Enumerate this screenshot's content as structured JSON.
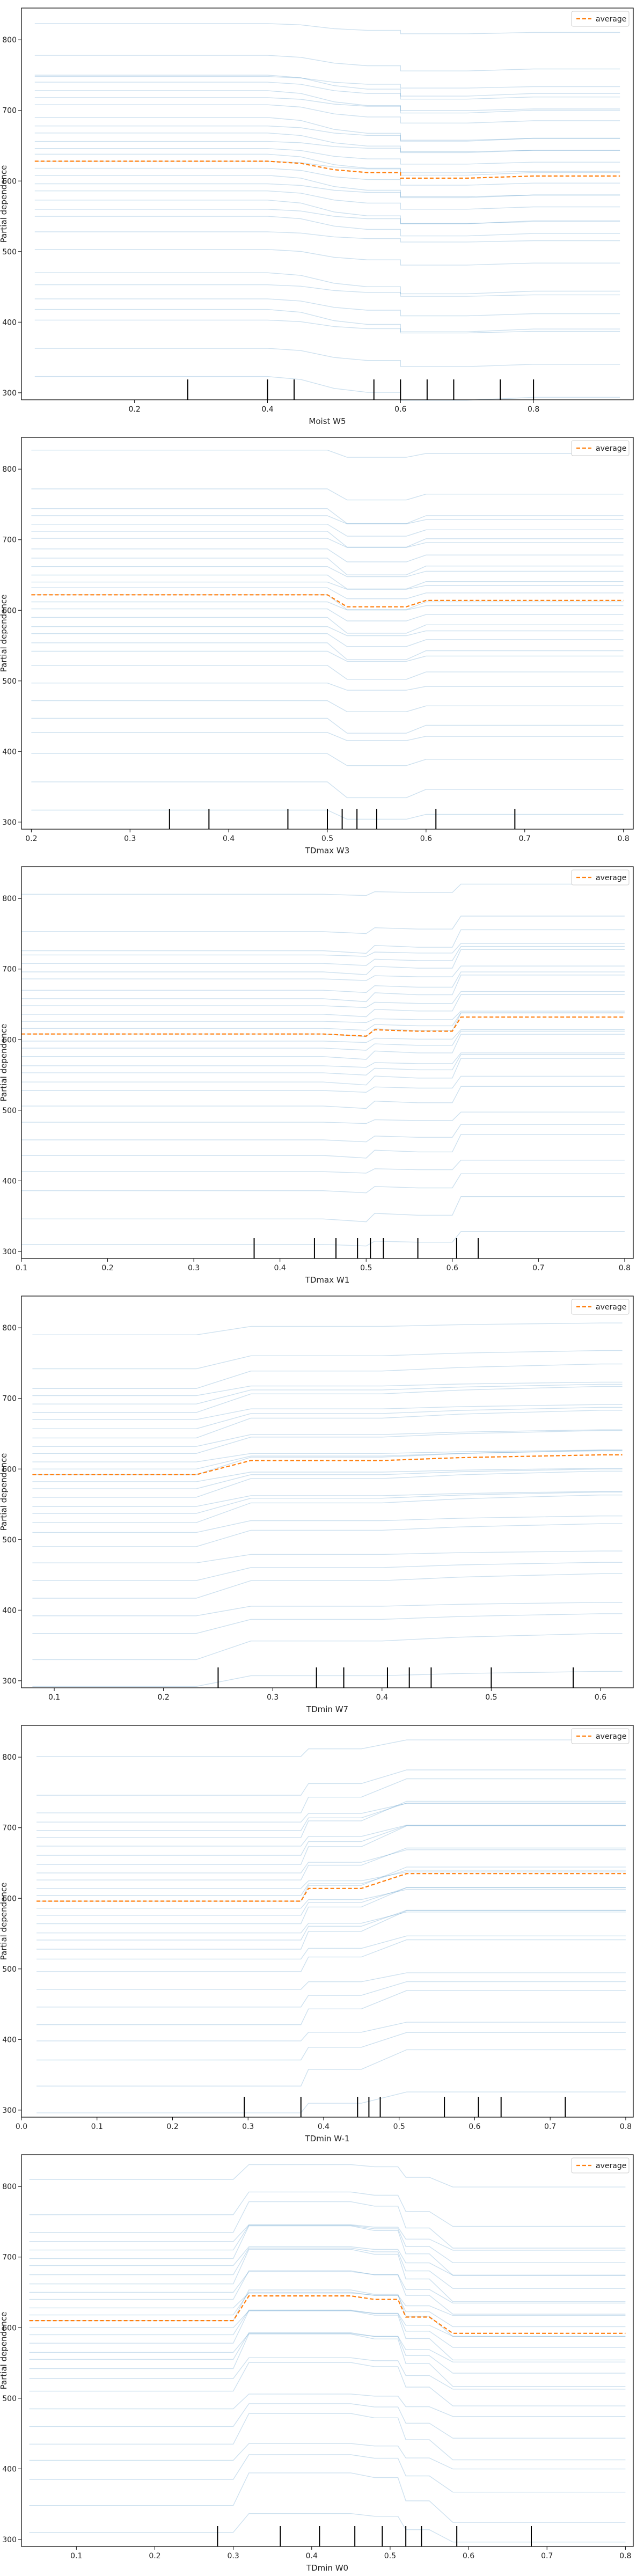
{
  "figure": {
    "ylabel": "Partial dependence",
    "legend_label": "average",
    "colors": {
      "ice": "#1f77b4",
      "average": "#ff7f0e",
      "rug": "#000000"
    }
  },
  "chart_data": [
    {
      "type": "line",
      "xlabel": "Moist W5",
      "xlim": [
        0.03,
        0.95
      ],
      "ylim": [
        290,
        845
      ],
      "xticks": [
        0.2,
        0.4,
        0.6,
        0.8
      ],
      "yticks": [
        300,
        400,
        500,
        600,
        700,
        800
      ],
      "legend_position": "top-right",
      "x": [
        0.05,
        0.4,
        0.45,
        0.5,
        0.55,
        0.6,
        0.6,
        0.7,
        0.8,
        0.93
      ],
      "average": [
        628,
        628,
        625,
        616,
        612,
        612,
        604,
        604,
        607,
        607
      ],
      "ice_offsets": [
        195,
        150,
        122,
        120,
        112,
        100,
        90,
        80,
        62,
        50,
        40,
        28,
        18,
        10,
        0,
        -10,
        -20,
        -32,
        -42,
        -55,
        -68,
        -78,
        -100,
        -125,
        -158,
        -175,
        -195,
        -210,
        -225,
        -265,
        -305
      ],
      "rug": [
        0.28,
        0.4,
        0.44,
        0.56,
        0.6,
        0.64,
        0.68,
        0.75,
        0.8
      ]
    },
    {
      "type": "line",
      "xlabel": "TDmax W3",
      "xlim": [
        0.19,
        0.81
      ],
      "ylim": [
        290,
        845
      ],
      "xticks": [
        0.2,
        0.3,
        0.4,
        0.5,
        0.6,
        0.7,
        0.8
      ],
      "yticks": [
        300,
        400,
        500,
        600,
        700,
        800
      ],
      "legend_position": "top-right",
      "x": [
        0.2,
        0.5,
        0.52,
        0.58,
        0.6,
        0.8
      ],
      "average": [
        622,
        622,
        605,
        605,
        614,
        614
      ],
      "ice_offsets": [
        205,
        150,
        122,
        112,
        100,
        90,
        80,
        65,
        52,
        40,
        28,
        18,
        10,
        0,
        -10,
        -20,
        -32,
        -45,
        -55,
        -68,
        -80,
        -100,
        -125,
        -150,
        -175,
        -195,
        -225,
        -265,
        -305
      ],
      "rug": [
        0.34,
        0.38,
        0.46,
        0.5,
        0.515,
        0.53,
        0.55,
        0.61,
        0.69
      ]
    },
    {
      "type": "line",
      "xlabel": "TDmax W1",
      "xlim": [
        0.1,
        0.81
      ],
      "ylim": [
        290,
        845
      ],
      "xticks": [
        0.1,
        0.2,
        0.3,
        0.4,
        0.5,
        0.6,
        0.7,
        0.8
      ],
      "yticks": [
        300,
        400,
        500,
        600,
        700,
        800
      ],
      "legend_position": "top-right",
      "x": [
        0.1,
        0.45,
        0.5,
        0.51,
        0.56,
        0.6,
        0.61,
        0.8
      ],
      "average": [
        608,
        608,
        605,
        614,
        612,
        612,
        632,
        632
      ],
      "ice_offsets": [
        198,
        145,
        118,
        112,
        100,
        88,
        78,
        62,
        50,
        40,
        28,
        18,
        8,
        0,
        -10,
        -20,
        -32,
        -45,
        -55,
        -68,
        -80,
        -102,
        -125,
        -150,
        -172,
        -195,
        -222,
        -262,
        -298
      ],
      "rug": [
        0.37,
        0.44,
        0.465,
        0.49,
        0.505,
        0.52,
        0.56,
        0.605,
        0.63
      ]
    },
    {
      "type": "line",
      "xlabel": "TDmin W7",
      "xlim": [
        0.07,
        0.63
      ],
      "ylim": [
        290,
        845
      ],
      "xticks": [
        0.1,
        0.2,
        0.3,
        0.4,
        0.5,
        0.6
      ],
      "yticks": [
        300,
        400,
        500,
        600,
        700,
        800
      ],
      "legend_position": "top-right",
      "x": [
        0.08,
        0.23,
        0.28,
        0.4,
        0.47,
        0.5,
        0.6,
        0.62
      ],
      "average": [
        592,
        592,
        612,
        612,
        616,
        617,
        620,
        620
      ],
      "ice_offsets": [
        198,
        150,
        122,
        112,
        100,
        88,
        78,
        65,
        52,
        40,
        30,
        18,
        8,
        0,
        -10,
        -20,
        -32,
        -45,
        -55,
        -68,
        -82,
        -102,
        -125,
        -150,
        -175,
        -200,
        -225,
        -262,
        -300
      ],
      "rug": [
        0.25,
        0.34,
        0.365,
        0.405,
        0.425,
        0.445,
        0.5,
        0.575
      ]
    },
    {
      "type": "line",
      "xlabel": "TDmin W-1",
      "xlim": [
        0.0,
        0.81
      ],
      "ylim": [
        290,
        845
      ],
      "xticks": [
        0.0,
        0.1,
        0.2,
        0.3,
        0.4,
        0.5,
        0.6,
        0.7,
        0.8
      ],
      "yticks": [
        300,
        400,
        500,
        600,
        700,
        800
      ],
      "legend_position": "top-right",
      "x": [
        0.02,
        0.37,
        0.38,
        0.45,
        0.51,
        0.8
      ],
      "average": [
        596,
        596,
        614,
        614,
        635,
        635
      ],
      "ice_offsets": [
        205,
        150,
        125,
        112,
        100,
        90,
        78,
        65,
        52,
        40,
        30,
        18,
        8,
        0,
        -10,
        -20,
        -32,
        -45,
        -55,
        -68,
        -82,
        -100,
        -125,
        -150,
        -175,
        -198,
        -225,
        -262,
        -300
      ],
      "rug": [
        0.295,
        0.37,
        0.445,
        0.46,
        0.475,
        0.56,
        0.605,
        0.635,
        0.72
      ]
    },
    {
      "type": "line",
      "xlabel": "TDmin W0",
      "xlim": [
        0.03,
        0.81
      ],
      "ylim": [
        290,
        845
      ],
      "xticks": [
        0.1,
        0.2,
        0.3,
        0.4,
        0.5,
        0.6,
        0.7,
        0.8
      ],
      "yticks": [
        300,
        400,
        500,
        600,
        700,
        800
      ],
      "legend_position": "top-right",
      "x": [
        0.04,
        0.3,
        0.32,
        0.45,
        0.48,
        0.51,
        0.52,
        0.55,
        0.58,
        0.8
      ],
      "average": [
        610,
        610,
        645,
        645,
        640,
        640,
        615,
        615,
        592,
        592
      ],
      "ice_offsets": [
        200,
        150,
        125,
        112,
        100,
        88,
        78,
        65,
        52,
        40,
        30,
        18,
        8,
        0,
        -10,
        -20,
        -32,
        -45,
        -55,
        -68,
        -82,
        -100,
        -125,
        -150,
        -175,
        -198,
        -225,
        -262,
        -300
      ],
      "rug": [
        0.28,
        0.36,
        0.41,
        0.455,
        0.49,
        0.52,
        0.54,
        0.585,
        0.68
      ]
    }
  ]
}
